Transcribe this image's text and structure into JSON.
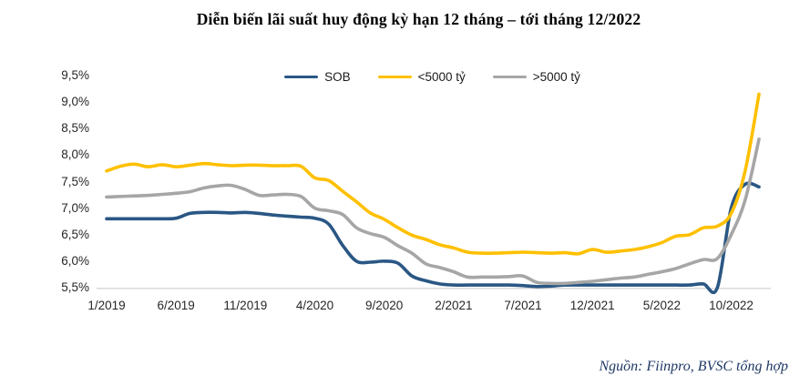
{
  "title": "Diễn biến lãi suất huy động kỳ hạn 12 tháng – tới tháng 12/2022",
  "source": "Nguồn: Fiinpro, BVSC tổng hợp",
  "colors": {
    "sob_blue": "#2A5784",
    "under5000_yellow": "#FFC000",
    "over5000_gray": "#A6A6A6",
    "axis_line": "#D9D9D9",
    "tick_text": "#262626",
    "title_text": "#000000",
    "source_text": "#1F3864"
  },
  "chart_data": {
    "type": "line",
    "title": "Diễn biến lãi suất huy động kỳ hạn 12 tháng – tới tháng 12/2022",
    "xlabel": "",
    "ylabel": "",
    "ylim": [
      5.5,
      9.5
    ],
    "y_tick_step": 0.5,
    "y_tick_labels": [
      "5,5%",
      "6,0%",
      "6,5%",
      "7,0%",
      "7,5%",
      "8,0%",
      "8,5%",
      "9,0%",
      "9,5%"
    ],
    "grid": false,
    "legend_position": "top-center",
    "x": [
      "1/2019",
      "2/2019",
      "3/2019",
      "4/2019",
      "5/2019",
      "6/2019",
      "7/2019",
      "8/2019",
      "9/2019",
      "10/2019",
      "11/2019",
      "12/2019",
      "1/2020",
      "2/2020",
      "3/2020",
      "4/2020",
      "5/2020",
      "6/2020",
      "7/2020",
      "8/2020",
      "9/2020",
      "10/2020",
      "11/2020",
      "12/2020",
      "1/2021",
      "2/2021",
      "3/2021",
      "4/2021",
      "5/2021",
      "6/2021",
      "7/2021",
      "8/2021",
      "9/2021",
      "10/2021",
      "11/2021",
      "12/2021",
      "1/2022",
      "2/2022",
      "3/2022",
      "4/2022",
      "5/2022",
      "6/2022",
      "7/2022",
      "8/2022",
      "9/2022",
      "10/2022",
      "11/2022",
      "12/2022"
    ],
    "x_tick_labels": [
      "1/2019",
      "6/2019",
      "11/2019",
      "4/2020",
      "9/2020",
      "2/2021",
      "7/2021",
      "12/2021",
      "5/2022",
      "10/2022"
    ],
    "x_tick_every": 5,
    "series": [
      {
        "name": "SOB",
        "color": "#2A5784",
        "values": [
          6.8,
          6.8,
          6.8,
          6.8,
          6.8,
          6.81,
          6.9,
          6.92,
          6.92,
          6.91,
          6.92,
          6.9,
          6.87,
          6.85,
          6.83,
          6.81,
          6.7,
          6.3,
          6.0,
          5.98,
          6.0,
          5.96,
          5.72,
          5.63,
          5.57,
          5.55,
          5.55,
          5.55,
          5.55,
          5.55,
          5.54,
          5.52,
          5.53,
          5.55,
          5.55,
          5.55,
          5.55,
          5.55,
          5.55,
          5.55,
          5.55,
          5.55,
          5.55,
          5.57,
          5.5,
          7.0,
          7.45,
          7.4
        ]
      },
      {
        "name": "<5000 tỷ",
        "color": "#FFC000",
        "values": [
          7.7,
          7.79,
          7.83,
          7.78,
          7.82,
          7.78,
          7.81,
          7.84,
          7.82,
          7.8,
          7.81,
          7.81,
          7.8,
          7.8,
          7.79,
          7.57,
          7.52,
          7.32,
          7.12,
          6.91,
          6.79,
          6.63,
          6.49,
          6.41,
          6.31,
          6.25,
          6.17,
          6.15,
          6.15,
          6.16,
          6.17,
          6.16,
          6.15,
          6.16,
          6.14,
          6.22,
          6.17,
          6.19,
          6.22,
          6.27,
          6.35,
          6.47,
          6.5,
          6.63,
          6.66,
          6.9,
          7.7,
          9.15
        ]
      },
      {
        "name": ">5000 tỷ",
        "color": "#A6A6A6",
        "values": [
          7.21,
          7.22,
          7.23,
          7.24,
          7.26,
          7.28,
          7.31,
          7.38,
          7.42,
          7.43,
          7.35,
          7.24,
          7.25,
          7.26,
          7.22,
          7.0,
          6.95,
          6.88,
          6.63,
          6.52,
          6.45,
          6.29,
          6.15,
          5.95,
          5.88,
          5.8,
          5.7,
          5.7,
          5.7,
          5.71,
          5.72,
          5.6,
          5.58,
          5.58,
          5.6,
          5.62,
          5.65,
          5.68,
          5.7,
          5.75,
          5.8,
          5.86,
          5.95,
          6.03,
          6.05,
          6.5,
          7.15,
          8.3
        ]
      }
    ]
  }
}
